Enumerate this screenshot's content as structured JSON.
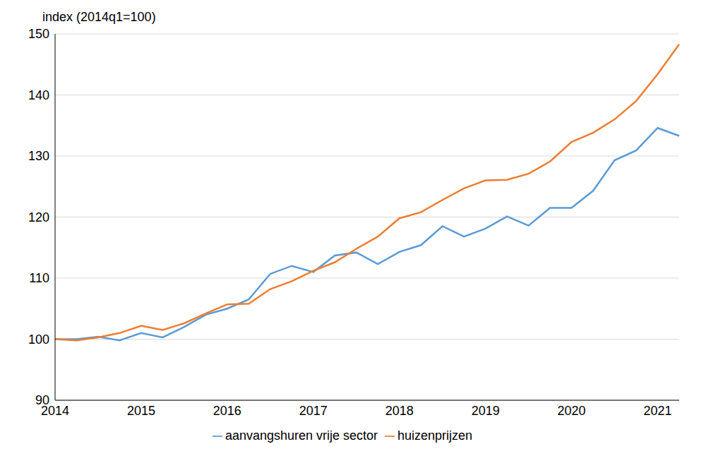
{
  "chart_data": {
    "type": "line",
    "y_label": "index (2014q1=100)",
    "categories": [
      "2014",
      null,
      null,
      null,
      "2015",
      null,
      null,
      null,
      "2016",
      null,
      null,
      null,
      "2017",
      null,
      null,
      null,
      "2018",
      null,
      null,
      null,
      "2019",
      null,
      null,
      null,
      "2020",
      null,
      null,
      null,
      "2021",
      null
    ],
    "series": [
      {
        "name": "aanvangshuren vrije sector",
        "color": "#5B9BD5",
        "values": [
          100,
          100,
          100.4,
          99.8,
          101,
          100.3,
          102,
          104,
          105,
          106.5,
          110.7,
          112,
          111,
          113.7,
          114.2,
          112.3,
          114.3,
          115.4,
          118.5,
          116.8,
          118.1,
          120.1,
          118.6,
          121.5,
          121.5,
          124.3,
          129.3,
          130.9,
          134.6,
          133.3
        ]
      },
      {
        "name": "huizenprijzen",
        "color": "#ED7D31",
        "values": [
          100,
          99.8,
          100.3,
          101,
          102.2,
          101.5,
          102.6,
          104.2,
          105.7,
          105.8,
          108.2,
          109.5,
          111.2,
          112.6,
          114.8,
          116.8,
          119.8,
          120.8,
          122.8,
          124.7,
          126,
          126.1,
          127.1,
          129.1,
          132.3,
          133.8,
          136,
          139,
          143.4,
          148.3
        ]
      }
    ],
    "ylim": [
      90,
      150
    ],
    "yticks": [
      90,
      100,
      110,
      120,
      130,
      140,
      150
    ],
    "grid": true,
    "legend": "bottom"
  }
}
